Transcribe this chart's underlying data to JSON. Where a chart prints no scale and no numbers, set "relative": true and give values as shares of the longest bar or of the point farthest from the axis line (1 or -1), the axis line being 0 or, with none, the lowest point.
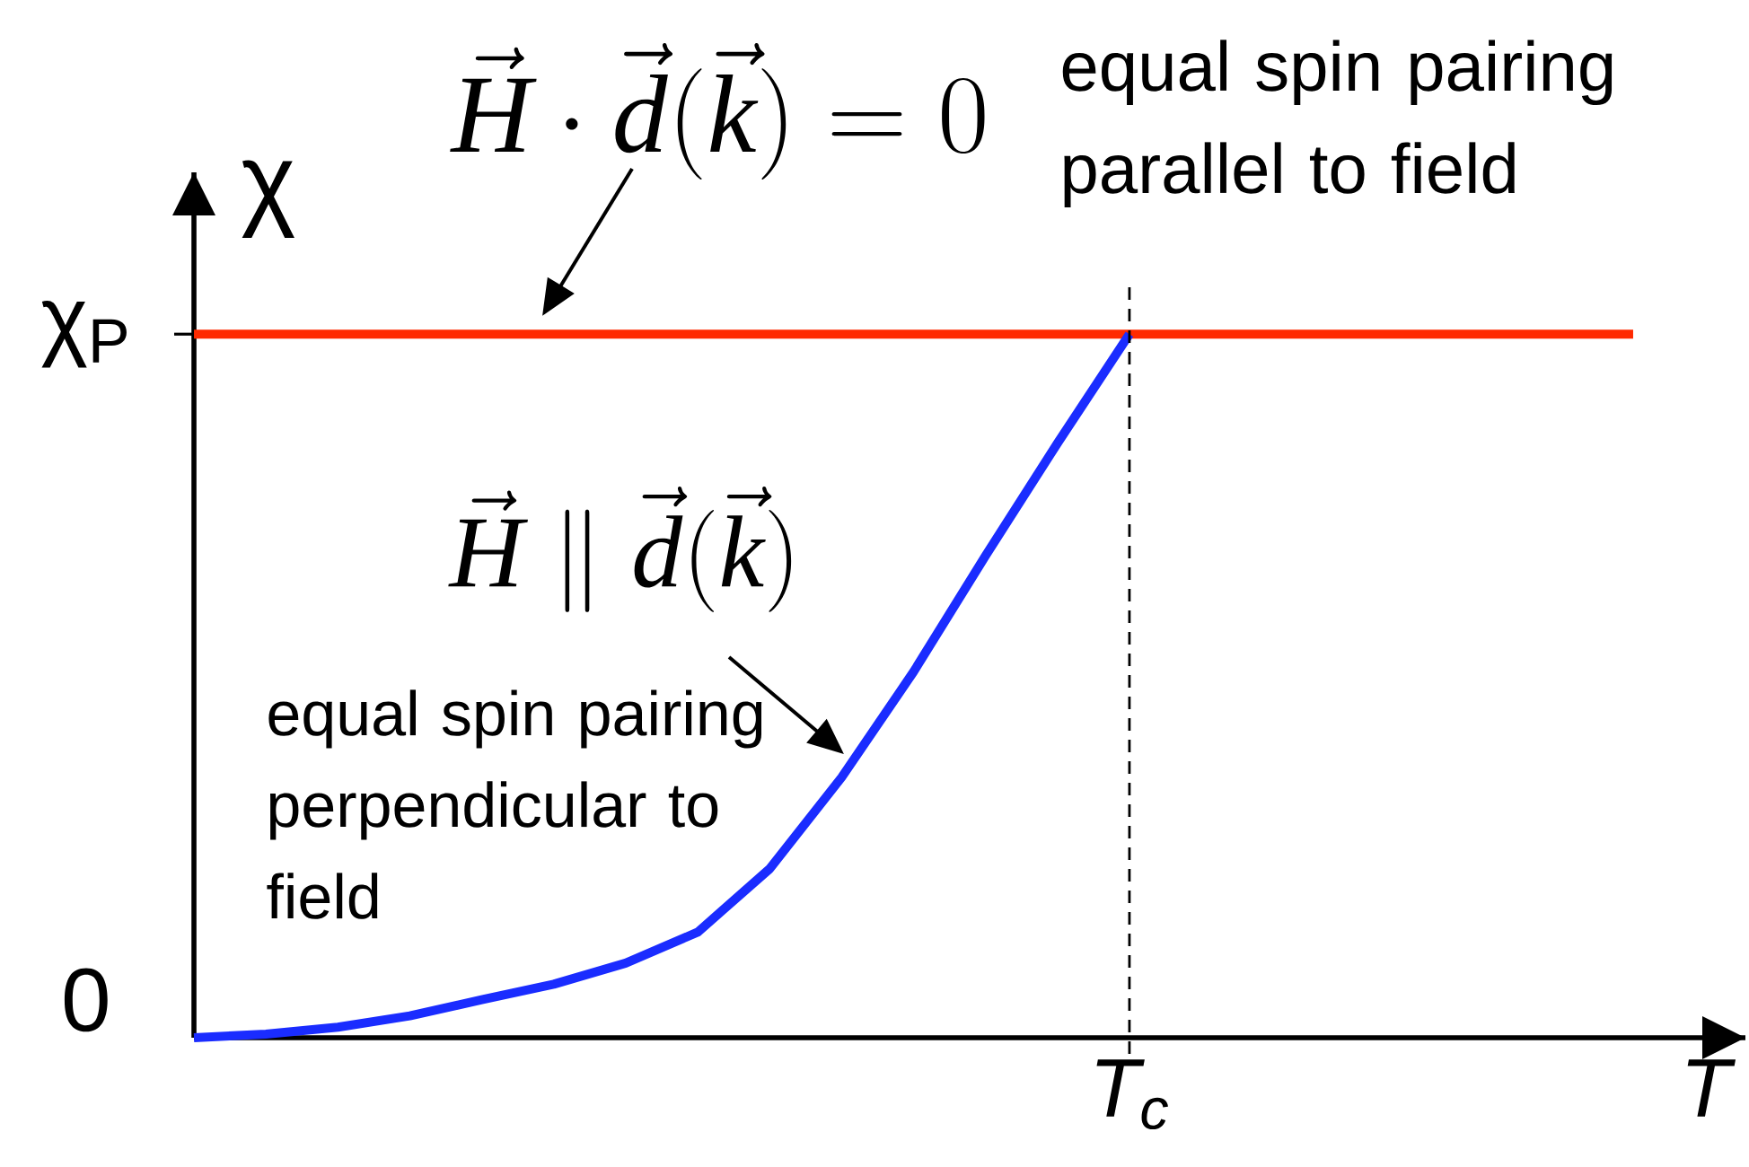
{
  "chart_data": {
    "type": "line",
    "relative": true,
    "xlabel": "T",
    "ylabel": "χ",
    "categories": [
      null,
      null,
      null,
      null,
      null,
      null,
      null,
      null,
      null,
      null,
      null,
      null,
      null,
      null,
      null,
      null,
      null,
      null,
      null,
      null,
      null
    ],
    "series": [
      {
        "color": "#ff2a00",
        "values": [
          1,
          1,
          1,
          1,
          1,
          1,
          1,
          1,
          1,
          1,
          1,
          1,
          1,
          1,
          1,
          1,
          1,
          1,
          1,
          1,
          1
        ]
      },
      {
        "color": "#1a2cff",
        "values": [
          0,
          0.005,
          0.015,
          0.031,
          0.054,
          0.076,
          0.106,
          0.15,
          0.24,
          0.37,
          0.52,
          0.685,
          0.845,
          1,
          null,
          null,
          null,
          null,
          null,
          null,
          null
        ]
      }
    ],
    "annotations": [
      "\\vec{\\mathit{H}}\\cdot\\vec{\\mathit{d}}\\Bigl(\\vec{\\mathit{k}}\\Bigr)=0",
      "equal spin pairing parallel to field",
      "\\vec{\\mathit{H}}\\parallel\\vec{\\mathit{d}}\\Bigl(\\vec{\\mathit{k}}\\Bigr)",
      "equal spin pairing perpendicular to field",
      "0",
      "χ$_{P}$",
      "T$_{c}$"
    ]
  }
}
